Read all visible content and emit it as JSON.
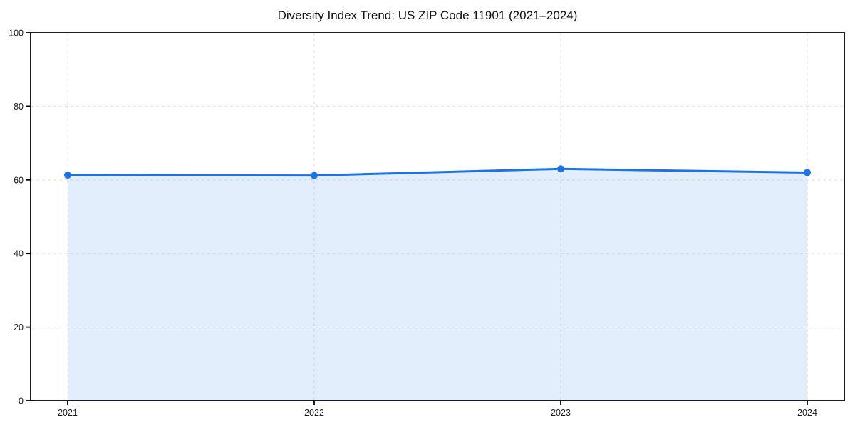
{
  "chart_data": {
    "type": "area",
    "title": "Diversity Index Trend: US ZIP Code 11901 (2021–2024)",
    "x": [
      2021,
      2022,
      2023,
      2024
    ],
    "values": [
      61.3,
      61.2,
      63.0,
      62.0
    ],
    "xtick_labels": [
      "2021",
      "2022",
      "2023",
      "2024"
    ],
    "yticks": [
      0,
      20,
      40,
      60,
      80,
      100
    ],
    "ytick_labels": [
      "0",
      "20",
      "40",
      "60",
      "80",
      "100"
    ],
    "ylim": [
      0,
      100
    ],
    "xlabel": "",
    "ylabel": "",
    "grid": "dashed",
    "legend": "none",
    "marker": "circle",
    "colors": {
      "line": "#1a73e8",
      "marker": "#1a73e8",
      "fill": "rgba(26,115,232,0.12)",
      "grid": "#dedede",
      "spine": "#000000",
      "tick_label": "#1c1c1c",
      "title": "#111111",
      "background": "#ffffff"
    }
  }
}
